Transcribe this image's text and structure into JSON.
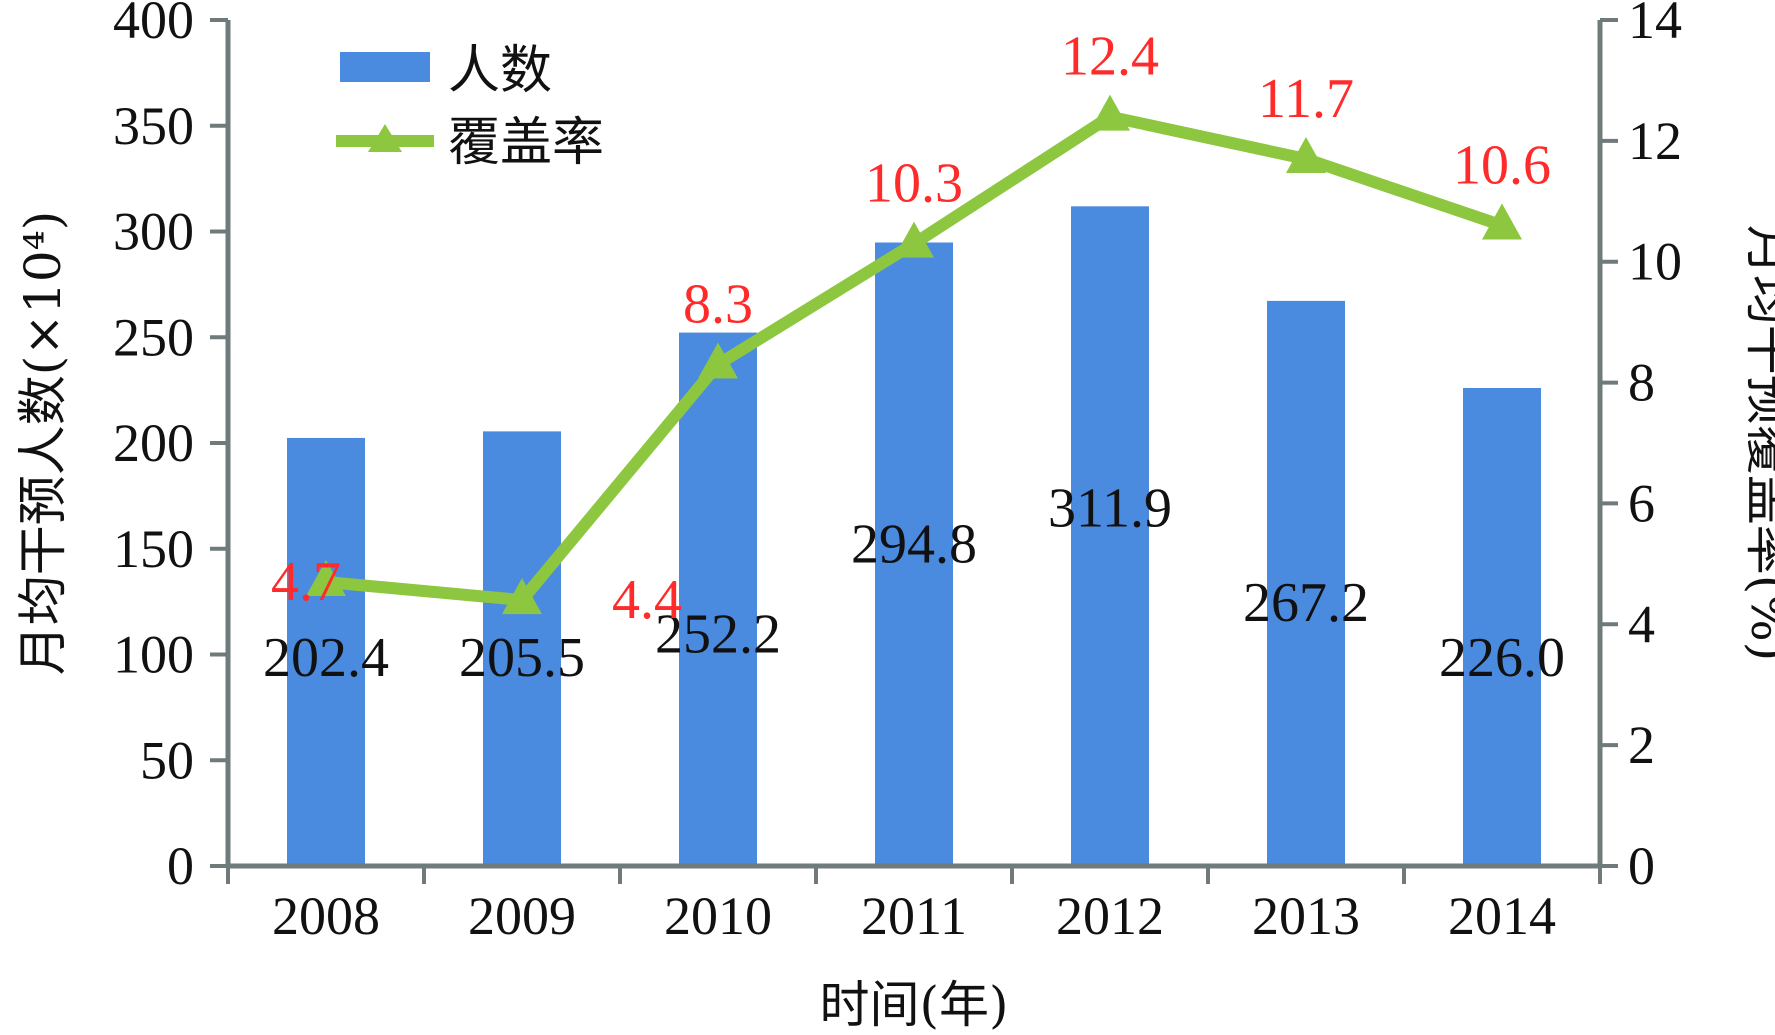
{
  "chart_data": {
    "type": "bar",
    "categories": [
      "2008",
      "2009",
      "2010",
      "2011",
      "2012",
      "2013",
      "2014"
    ],
    "xlabel": "时间(年)",
    "ylabel_left": "月均干预人数(×10⁴)",
    "ylabel_right": "月均干预覆盖率(%)",
    "ylim_left": [
      0,
      400
    ],
    "ylim_right": [
      0,
      14
    ],
    "yticks_left": [
      "0",
      "50",
      "100",
      "150",
      "200",
      "250",
      "300",
      "350",
      "400"
    ],
    "yticks_right": [
      "0",
      "2",
      "4",
      "6",
      "8",
      "10",
      "12",
      "14"
    ],
    "grid": false,
    "legend_position": "top-left",
    "series": [
      {
        "name": "人数",
        "type": "bar",
        "axis": "left",
        "color": "#4a8be0",
        "values": [
          202.4,
          205.5,
          252.2,
          294.8,
          311.9,
          267.2,
          226.0
        ],
        "labels": [
          "202.4",
          "205.5",
          "252.2",
          "294.8",
          "311.9",
          "267.2",
          "226.0"
        ]
      },
      {
        "name": "覆盖率",
        "type": "line",
        "marker": "triangle",
        "axis": "right",
        "color": "#8dc63f",
        "label_color": "#ff2a2a",
        "values": [
          4.7,
          4.4,
          8.3,
          10.3,
          12.4,
          11.7,
          10.6
        ],
        "labels": [
          "4.7",
          "4.4",
          "8.3",
          "10.3",
          "12.4",
          "11.7",
          "10.6"
        ]
      }
    ]
  }
}
